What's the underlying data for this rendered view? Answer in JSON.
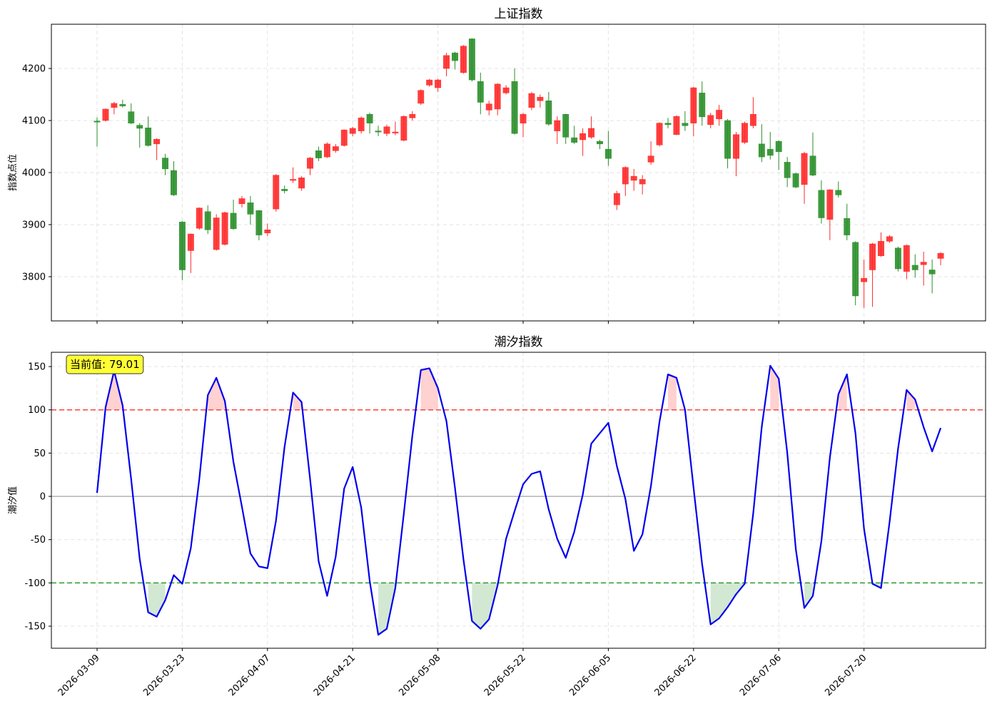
{
  "chart_data": [
    {
      "type": "candlestick",
      "title": "上证指数",
      "ylabel": "指数点位",
      "open": [
        4099,
        4100,
        4125,
        4131,
        4117,
        4091,
        4086,
        4055,
        4028,
        4004,
        3905,
        3850,
        3893,
        3925,
        3852,
        3862,
        3922,
        3940,
        3942,
        3927,
        3884,
        3930,
        3968,
        3985,
        3970,
        4008,
        4042,
        4030,
        4042,
        4052,
        4075,
        4080,
        4112,
        4080,
        4075,
        4076,
        4062,
        4105,
        4133,
        4168,
        4163,
        4200,
        4230,
        4192,
        4257,
        4175,
        4120,
        4122,
        4153,
        4175,
        4095,
        4125,
        4138,
        4138,
        4080,
        4112,
        4067,
        4063,
        4068,
        4060,
        4045,
        3938,
        3978,
        3985,
        3978,
        4020,
        4053,
        4095,
        4073,
        4095,
        4095,
        4153,
        4092,
        4103,
        4100,
        4027,
        4058,
        4090,
        4055,
        4045,
        4060,
        4020,
        3998,
        3977,
        4032,
        3966,
        3910,
        3966,
        3912,
        3866,
        3790,
        3813,
        3840,
        3868,
        3855,
        3810,
        3822,
        3823,
        3813,
        3835
      ],
      "high": [
        4106,
        4123,
        4136,
        4140,
        4133,
        4095,
        4108,
        4066,
        4036,
        4022,
        3907,
        3883,
        3933,
        3937,
        3920,
        3925,
        3948,
        3955,
        3955,
        3928,
        3902,
        3997,
        3975,
        4010,
        3993,
        4030,
        4050,
        4058,
        4055,
        4083,
        4088,
        4108,
        4115,
        4090,
        4092,
        4098,
        4110,
        4118,
        4160,
        4180,
        4180,
        4230,
        4232,
        4245,
        4258,
        4192,
        4138,
        4172,
        4168,
        4200,
        4115,
        4155,
        4150,
        4155,
        4108,
        4113,
        4090,
        4085,
        4108,
        4063,
        4080,
        3965,
        4012,
        4007,
        3995,
        4060,
        4097,
        4105,
        4110,
        4118,
        4165,
        4175,
        4115,
        4130,
        4103,
        4078,
        4098,
        4145,
        4093,
        4078,
        4062,
        4030,
        4000,
        4040,
        4077,
        3985,
        3968,
        3983,
        3940,
        3868,
        3833,
        3865,
        3885,
        3880,
        3858,
        3862,
        3843,
        3848,
        3833,
        3847
      ],
      "low": [
        4050,
        4098,
        4112,
        4125,
        4093,
        4048,
        4050,
        4024,
        3995,
        3955,
        3793,
        3807,
        3890,
        3882,
        3850,
        3860,
        3890,
        3933,
        3900,
        3870,
        3878,
        3925,
        3960,
        3980,
        3965,
        3995,
        4022,
        4028,
        4038,
        4050,
        4070,
        4075,
        4075,
        4070,
        4070,
        4072,
        4060,
        4100,
        4130,
        4165,
        4155,
        4185,
        4198,
        4190,
        4175,
        4112,
        4110,
        4110,
        4150,
        4073,
        4068,
        4120,
        4125,
        4090,
        4055,
        4055,
        4055,
        4032,
        4065,
        4045,
        4013,
        3928,
        3955,
        3965,
        3958,
        4015,
        4050,
        4085,
        4072,
        4080,
        4070,
        4090,
        4085,
        4090,
        4008,
        3993,
        4055,
        4085,
        4020,
        4025,
        4005,
        3972,
        3970,
        3940,
        3993,
        3902,
        3870,
        3952,
        3870,
        3745,
        3740,
        3742,
        3838,
        3865,
        3810,
        3795,
        3798,
        3783,
        3768,
        3822
      ],
      "close": [
        4097,
        4122,
        4133,
        4128,
        4095,
        4085,
        4052,
        4064,
        4007,
        3957,
        3813,
        3882,
        3932,
        3890,
        3913,
        3923,
        3892,
        3950,
        3920,
        3880,
        3890,
        3995,
        3965,
        3987,
        3990,
        4028,
        4028,
        4055,
        4050,
        4082,
        4085,
        4105,
        4095,
        4078,
        4088,
        4078,
        4108,
        4112,
        4158,
        4178,
        4178,
        4225,
        4215,
        4243,
        4178,
        4135,
        4132,
        4170,
        4163,
        4075,
        4112,
        4152,
        4145,
        4093,
        4100,
        4068,
        4058,
        4075,
        4085,
        4055,
        4027,
        3960,
        4010,
        3993,
        3987,
        4032,
        4095,
        4092,
        4108,
        4090,
        4163,
        4107,
        4110,
        4120,
        4027,
        4073,
        4095,
        4112,
        4030,
        4033,
        4040,
        3990,
        3972,
        4037,
        3995,
        3913,
        3967,
        3957,
        3880,
        3763,
        3797,
        3863,
        3868,
        3877,
        3815,
        3860,
        3813,
        3828,
        3805,
        3845
      ],
      "up_color": "#ff2a2a",
      "down_color": "#2a8f2a",
      "xlim": [
        -5.36,
        104.27
      ],
      "ylim": [
        3715,
        4285
      ],
      "yticks": [
        3800,
        3900,
        4000,
        4100,
        4200
      ],
      "grid": true
    },
    {
      "type": "line",
      "title": "潮汐指数",
      "ylabel": "潮汐值",
      "categories": [
        "2026-03-09",
        null,
        null,
        null,
        null,
        null,
        null,
        null,
        null,
        null,
        "2026-03-23",
        null,
        null,
        null,
        null,
        null,
        null,
        null,
        null,
        null,
        "2026-04-07",
        null,
        null,
        null,
        null,
        null,
        null,
        null,
        null,
        null,
        "2026-04-21",
        null,
        null,
        null,
        null,
        null,
        null,
        null,
        null,
        null,
        "2026-05-08",
        null,
        null,
        null,
        null,
        null,
        null,
        null,
        null,
        null,
        "2026-05-22",
        null,
        null,
        null,
        null,
        null,
        null,
        null,
        null,
        null,
        "2026-06-05",
        null,
        null,
        null,
        null,
        null,
        null,
        null,
        null,
        null,
        "2026-06-22",
        null,
        null,
        null,
        null,
        null,
        null,
        null,
        null,
        null,
        "2026-07-06",
        null,
        null,
        null,
        null,
        null,
        null,
        null,
        null,
        null,
        "2026-07-20",
        null,
        null,
        null,
        null,
        null,
        null,
        null,
        null,
        null
      ],
      "values": [
        4,
        103,
        145,
        105,
        20,
        -72,
        -134,
        -139,
        -120,
        -91,
        -101,
        -60,
        20,
        117,
        137,
        110,
        40,
        -12,
        -66,
        -81,
        -83,
        -28,
        57,
        120,
        109,
        20,
        -75,
        -115,
        -70,
        9,
        34,
        -13,
        -98,
        -160,
        -153,
        -106,
        -20,
        70,
        146,
        148,
        125,
        87,
        10,
        -73,
        -144,
        -153,
        -142,
        -103,
        -49,
        -17,
        14,
        26,
        29,
        -15,
        -49,
        -71,
        -41,
        2,
        61,
        73,
        85,
        35,
        -3,
        -63,
        -44,
        12,
        86,
        141,
        137,
        100,
        10,
        -78,
        -148,
        -141,
        -128,
        -113,
        -101,
        -20,
        80,
        151,
        136,
        50,
        -61,
        -129,
        -115,
        -52,
        45,
        118,
        141,
        73,
        -37,
        -101,
        -106,
        -30,
        55,
        123,
        112,
        80,
        52,
        79.01
      ],
      "color": "#0000ee",
      "hlines": [
        {
          "value": 100,
          "color": "#ff4040",
          "dashed": true,
          "fill": "#ffcccc"
        },
        {
          "value": -100,
          "color": "#2e9a2e",
          "dashed": true,
          "fill": "#cde6cd"
        },
        {
          "value": 0,
          "color": "#999999",
          "dashed": false
        }
      ],
      "annotation": "当前值: 79.01",
      "xlim": [
        -5.36,
        104.27
      ],
      "ylim": [
        -175.5,
        166.5
      ],
      "yticks": [
        -150,
        -100,
        -50,
        0,
        50,
        100,
        150
      ],
      "grid": true
    }
  ]
}
